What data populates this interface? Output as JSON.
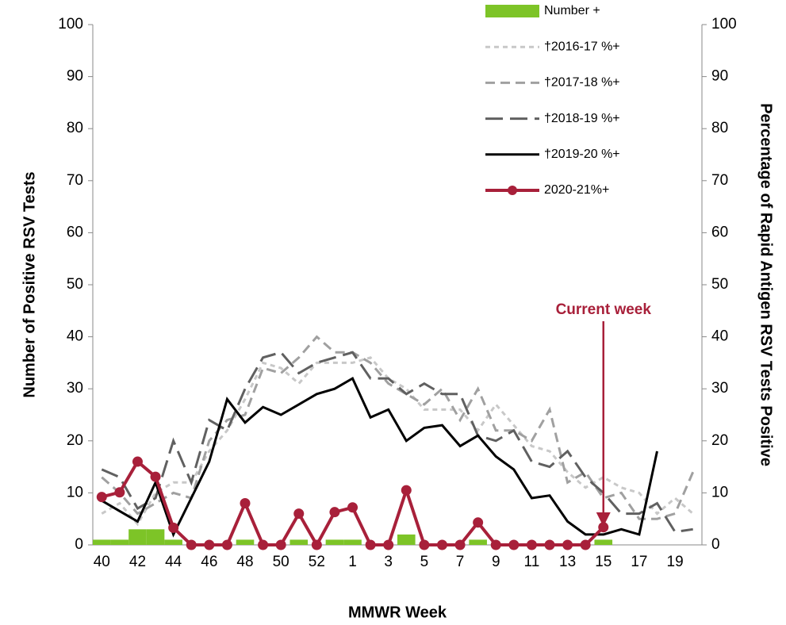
{
  "chart_data": {
    "type": "bar-line",
    "x_label": "MMWR Week",
    "y_label": "Number of Positive RSV Tests",
    "y2_label": "Percentage of Rapid Antigen RSV Tests Positive",
    "annotation": "Current week",
    "categories": [
      "40",
      null,
      "42",
      null,
      "44",
      null,
      "46",
      null,
      "48",
      null,
      "50",
      null,
      "52",
      null,
      "1",
      null,
      "3",
      null,
      "5",
      null,
      "7",
      null,
      "9",
      null,
      "11",
      null,
      "13",
      null,
      "15",
      null,
      "17",
      null,
      "19",
      null
    ],
    "ylim": [
      0,
      100
    ],
    "yticks": [
      0,
      10,
      20,
      30,
      40,
      50,
      60,
      70,
      80,
      90,
      100
    ],
    "y2lim": [
      0,
      100
    ],
    "y2ticks": [
      0,
      10,
      20,
      30,
      40,
      50,
      60,
      70,
      80,
      90,
      100
    ],
    "series": [
      {
        "name": "Number +",
        "type": "bar",
        "axis": "y",
        "color": "#7dc427",
        "values": [
          1,
          1,
          3,
          3,
          1,
          0,
          0,
          0,
          1,
          0,
          0,
          1,
          0,
          1,
          1,
          0,
          0,
          2,
          0,
          0,
          0,
          1,
          0,
          0,
          0,
          0,
          0,
          0,
          1,
          null,
          null,
          null,
          null,
          null
        ]
      },
      {
        "name": "†2016-17 %+",
        "type": "line",
        "axis": "y2",
        "color": "#c8c8c8",
        "line_style": "short-dash",
        "values": [
          6,
          8,
          4,
          10,
          12,
          12,
          18,
          22,
          28,
          35,
          34,
          31,
          35,
          35,
          35,
          36,
          32,
          30,
          26,
          26,
          26,
          22,
          27,
          23,
          19,
          18,
          14,
          11,
          13,
          11,
          10,
          6,
          9,
          6
        ]
      },
      {
        "name": "†2017-18 %+",
        "type": "line",
        "axis": "y2",
        "color": "#a0a0a0",
        "line_style": "dash",
        "values": [
          13,
          10,
          6,
          8,
          10,
          9,
          20,
          24,
          25,
          34,
          33,
          36,
          40,
          37,
          37,
          35,
          31,
          29,
          27,
          30,
          24,
          30,
          22,
          22,
          20,
          26,
          12,
          14,
          9,
          10,
          5,
          5,
          6,
          14
        ]
      },
      {
        "name": "†2018-19 %+",
        "type": "line",
        "axis": "y2",
        "color": "#606060",
        "line_style": "long-dash",
        "values": [
          14.5,
          13,
          7,
          9,
          20,
          12,
          24,
          22,
          30,
          36,
          37,
          33,
          35,
          36,
          37,
          32,
          32,
          29,
          31,
          29,
          29,
          21,
          20,
          22,
          16,
          15,
          18,
          13,
          10,
          6,
          6,
          8,
          2.5,
          3
        ]
      },
      {
        "name": "†2019-20 %+",
        "type": "line",
        "axis": "y2",
        "color": "#000000",
        "line_style": "solid",
        "values": [
          8.5,
          6.5,
          4.5,
          12,
          2,
          9,
          16,
          28,
          23.5,
          26.5,
          25,
          27,
          29,
          30,
          32,
          24.5,
          26,
          20,
          22.5,
          23,
          19,
          21,
          17,
          14.5,
          9,
          9.5,
          4.5,
          2,
          2,
          3,
          2,
          18,
          null,
          null
        ]
      },
      {
        "name": "2020-21%+",
        "type": "line",
        "axis": "y2",
        "color": "#a8203a",
        "line_style": "marker",
        "values": [
          9.2,
          10.1,
          16,
          13.1,
          3.3,
          0,
          0,
          0,
          8,
          0,
          0,
          6,
          0,
          6.3,
          7.2,
          0,
          0,
          10.5,
          0,
          0,
          0,
          4.3,
          0,
          0,
          0,
          0,
          0,
          0,
          3.4,
          null,
          null,
          null,
          null,
          null
        ]
      }
    ]
  }
}
